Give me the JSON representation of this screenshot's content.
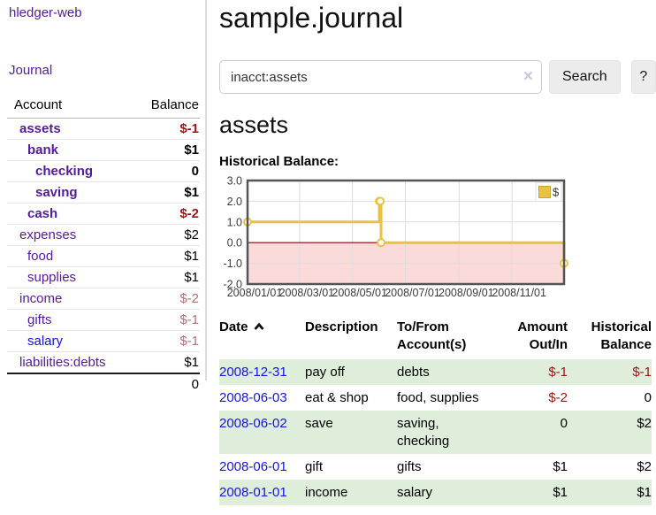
{
  "app_title": "hledger-web",
  "colors": {
    "link_purple": "#551a9b",
    "link_blue": "#1414e0",
    "negative_strong": "#9d1414",
    "negative_soft": "#bb6d72",
    "row_shade_green": "#dfeeda",
    "chart_series_yellow": "#e8c240",
    "chart_negative_fill": "#fbdada",
    "chart_zero_line": "#8b0000"
  },
  "sidebar": {
    "journal_link": "Journal",
    "accounts_table": {
      "headers": {
        "account": "Account",
        "balance": "Balance"
      },
      "rows": [
        {
          "name": "assets",
          "balance": "$-1",
          "level": 1,
          "bold": true,
          "balance_style": "neg-strong"
        },
        {
          "name": "bank",
          "balance": "$1",
          "level": 2,
          "bold": true,
          "balance_style": "normal"
        },
        {
          "name": "checking",
          "balance": "0",
          "level": 3,
          "bold": true,
          "balance_style": "normal"
        },
        {
          "name": "saving",
          "balance": "$1",
          "level": 3,
          "bold": true,
          "balance_style": "normal"
        },
        {
          "name": "cash",
          "balance": "$-2",
          "level": 2,
          "bold": true,
          "balance_style": "neg-strong"
        },
        {
          "name": "expenses",
          "balance": "$2",
          "level": 1,
          "bold": false,
          "balance_style": "normal"
        },
        {
          "name": "food",
          "balance": "$1",
          "level": 2,
          "bold": false,
          "balance_style": "normal"
        },
        {
          "name": "supplies",
          "balance": "$1",
          "level": 2,
          "bold": false,
          "balance_style": "normal"
        },
        {
          "name": "income",
          "balance": "$-2",
          "level": 1,
          "bold": false,
          "balance_style": "neg-soft"
        },
        {
          "name": "gifts",
          "balance": "$-1",
          "level": 2,
          "bold": false,
          "balance_style": "neg-soft"
        },
        {
          "name": "salary",
          "balance": "$-1",
          "level": 2,
          "bold": false,
          "balance_style": "neg-soft",
          "link_color": "blue"
        },
        {
          "name": "liabilities:debts",
          "balance": "$1",
          "level": 1,
          "bold": false,
          "balance_style": "normal"
        }
      ],
      "total": "0"
    }
  },
  "main": {
    "title": "sample.journal",
    "search": {
      "value": "inacct:assets",
      "clear_icon": "×",
      "button_label": "Search",
      "help_label": "?"
    },
    "account_heading": "assets",
    "chart_label": "Historical Balance:",
    "register_table": {
      "headers": {
        "date": "Date",
        "description": "Description",
        "accounts": "To/From Account(s)",
        "amount": "Amount Out/In",
        "balance": "Historical Balance"
      },
      "rows": [
        {
          "date": "2008-12-31",
          "description": "pay off",
          "accounts": "debts",
          "amount": "$-1",
          "balance": "$-1",
          "amount_negative": true,
          "balance_negative": true
        },
        {
          "date": "2008-06-03",
          "description": "eat & shop",
          "accounts": "food, supplies",
          "amount": "$-2",
          "balance": "0",
          "amount_negative": true,
          "balance_negative": false
        },
        {
          "date": "2008-06-02",
          "description": "save",
          "accounts": "saving, checking",
          "amount": "0",
          "balance": "$2",
          "amount_negative": false,
          "balance_negative": false
        },
        {
          "date": "2008-06-01",
          "description": "gift",
          "accounts": "gifts",
          "amount": "$1",
          "balance": "$2",
          "amount_negative": false,
          "balance_negative": false
        },
        {
          "date": "2008-01-01",
          "description": "income",
          "accounts": "salary",
          "amount": "$1",
          "balance": "$1",
          "amount_negative": false,
          "balance_negative": false
        }
      ]
    }
  },
  "chart_data": {
    "type": "line",
    "style": "step",
    "title": "Historical Balance:",
    "xlim": [
      "2008-01-01",
      "2008-12-31"
    ],
    "ylim": [
      -2,
      3
    ],
    "y_ticks": [
      3.0,
      2.0,
      1.0,
      0.0,
      -1.0,
      -2.0
    ],
    "x_ticks": [
      "2008/01/01",
      "2008/03/01",
      "2008/05/01",
      "2008/07/01",
      "2008/09/01",
      "2008/11/01"
    ],
    "grid": true,
    "negative_region_fill": "#fbdada",
    "zero_line_color": "#8b0000",
    "legend_position": "top-right",
    "series": [
      {
        "name": "$",
        "color": "#e8c240",
        "points": [
          [
            "2008-01-01",
            1
          ],
          [
            "2008-06-01",
            2
          ],
          [
            "2008-06-02",
            2
          ],
          [
            "2008-06-03",
            0
          ],
          [
            "2008-12-31",
            -1
          ]
        ]
      }
    ]
  }
}
